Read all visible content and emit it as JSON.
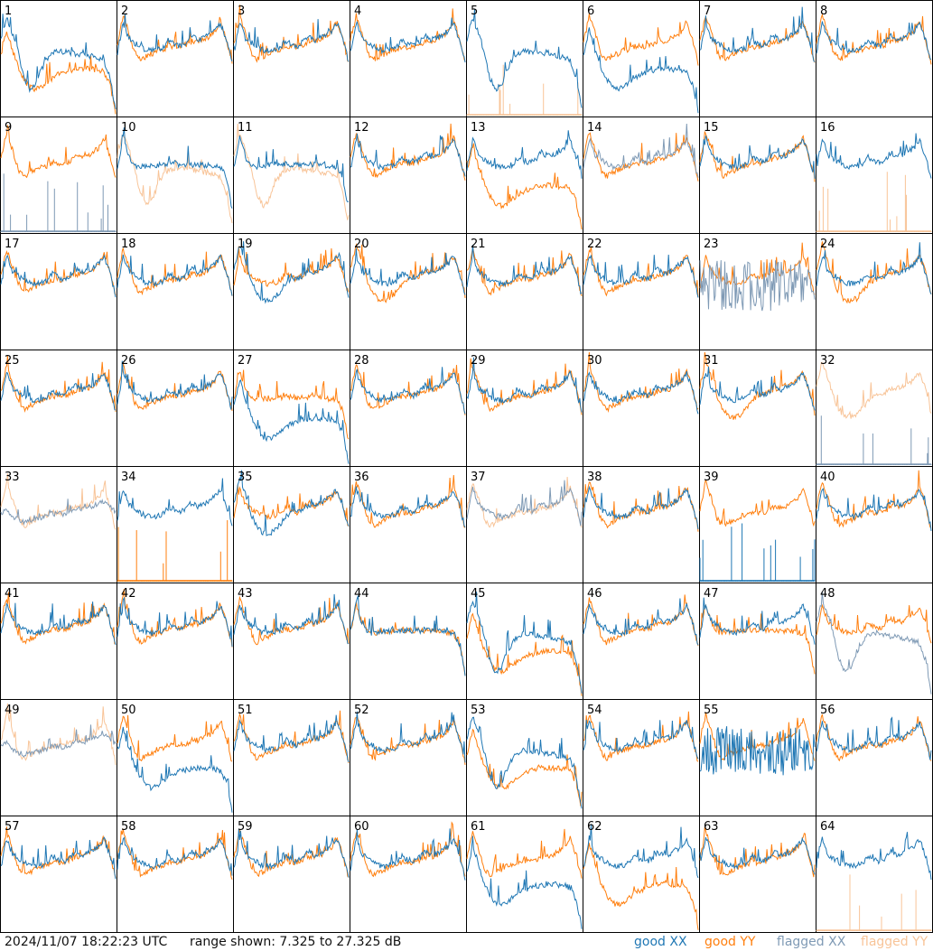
{
  "footer": {
    "timestamp": "2024/11/07 18:22:23 UTC",
    "range_text": "range shown: 7.325 to 27.325 dB"
  },
  "colors": {
    "good_xx": "#1f77b4",
    "good_yy": "#ff7f0e",
    "flagged_xx": "#7f9ab5",
    "flagged_yy": "#f8c498",
    "panel_border": "#000000",
    "background": "#ffffff"
  },
  "chart_data": {
    "type": "line",
    "layout": "8x8 small multiples",
    "ylim": [
      7.325,
      27.325
    ],
    "y_unit": "dB",
    "legend": [
      {
        "key": "good_xx",
        "label": "good XX"
      },
      {
        "key": "good_yy",
        "label": "good YY"
      },
      {
        "key": "flagged_xx",
        "label": "flagged XX"
      },
      {
        "key": "flagged_yy",
        "label": "flagged YY"
      }
    ],
    "x": [
      0,
      0.05,
      0.1,
      0.15,
      0.2,
      0.25,
      0.3,
      0.35,
      0.4,
      0.45,
      0.5,
      0.55,
      0.6,
      0.65,
      0.7,
      0.75,
      0.8,
      0.85,
      0.9,
      0.95,
      1.0
    ],
    "shapes": {
      "A": [
        18.5,
        23.8,
        21.0,
        20.2,
        19.5,
        19.0,
        18.8,
        19.0,
        19.3,
        20.6,
        20.0,
        19.6,
        20.3,
        21.4,
        20.7,
        21.0,
        21.6,
        22.3,
        23.6,
        20.8,
        16.8
      ],
      "B": [
        20.2,
        25.0,
        22.0,
        18.5,
        17.2,
        17.8,
        18.3,
        18.9,
        19.1,
        19.6,
        19.5,
        19.6,
        19.9,
        20.5,
        20.5,
        20.8,
        21.4,
        22.2,
        24.0,
        20.8,
        16.6
      ],
      "C": [
        21.3,
        25.8,
        22.8,
        19.3,
        17.0,
        16.0,
        15.8,
        16.2,
        17.4,
        18.8,
        19.5,
        19.8,
        20.2,
        20.9,
        21.0,
        21.4,
        21.8,
        22.6,
        23.6,
        21.0,
        16.5
      ],
      "D": [
        20.8,
        24.6,
        22.0,
        18.6,
        14.0,
        12.0,
        12.8,
        15.5,
        17.3,
        18.4,
        18.7,
        18.6,
        18.5,
        18.3,
        18.2,
        18.0,
        17.8,
        17.6,
        17.0,
        14.0,
        8.5
      ],
      "E": [
        18.0,
        22.5,
        19.0,
        16.0,
        13.8,
        12.4,
        12.0,
        12.4,
        13.2,
        14.0,
        14.6,
        15.0,
        15.3,
        15.5,
        15.6,
        15.6,
        15.5,
        15.4,
        15.0,
        13.0,
        8.0
      ],
      "F": [
        19.0,
        24.0,
        20.6,
        19.2,
        18.8,
        19.0,
        19.2,
        19.2,
        19.4,
        19.4,
        19.3,
        19.3,
        19.3,
        19.3,
        19.3,
        19.2,
        19.1,
        19.0,
        18.8,
        17.0,
        11.5
      ],
      "G": [
        19.4,
        20.0,
        19.0,
        18.4,
        18.0,
        18.2,
        18.4,
        18.7,
        19.0,
        19.4,
        19.4,
        19.3,
        19.5,
        20.0,
        20.2,
        20.4,
        20.8,
        21.2,
        21.6,
        20.6,
        19.5
      ]
    },
    "series": [
      "good_xx",
      "good_yy",
      "flagged_xx",
      "flagged_yy"
    ],
    "panels": [
      {
        "label": "1",
        "xx": "D",
        "yy": "E",
        "xx_flag": "good",
        "yy_flag": "good"
      },
      {
        "label": "2",
        "xx": "A",
        "yy": "B",
        "xx_flag": "good",
        "yy_flag": "good"
      },
      {
        "label": "3",
        "xx": "A",
        "yy": "B",
        "xx_flag": "good",
        "yy_flag": "good"
      },
      {
        "label": "4",
        "xx": "A",
        "yy": "B",
        "xx_flag": "good",
        "yy_flag": "good"
      },
      {
        "label": "5",
        "xx": "D",
        "yy": "spikes",
        "xx_flag": "good",
        "yy_flag": "flagged"
      },
      {
        "label": "6",
        "xx": "E",
        "yy": "B",
        "xx_flag": "good",
        "yy_flag": "good"
      },
      {
        "label": "7",
        "xx": "A",
        "yy": "B",
        "xx_flag": "good",
        "yy_flag": "good"
      },
      {
        "label": "8",
        "xx": "A",
        "yy": "B",
        "xx_flag": "good",
        "yy_flag": "good"
      },
      {
        "label": "9",
        "xx": "spikes",
        "yy": "B",
        "xx_flag": "flagged",
        "yy_flag": "good"
      },
      {
        "label": "10",
        "xx": "F",
        "yy": "D",
        "xx_flag": "good",
        "yy_flag": "flagged"
      },
      {
        "label": "11",
        "xx": "F",
        "yy": "D",
        "xx_flag": "good",
        "yy_flag": "flagged"
      },
      {
        "label": "12",
        "xx": "A",
        "yy": "B",
        "xx_flag": "good",
        "yy_flag": "good"
      },
      {
        "label": "13",
        "xx": "A",
        "yy": "E",
        "xx_flag": "good",
        "yy_flag": "good"
      },
      {
        "label": "14",
        "xx": "A",
        "yy": "B",
        "xx_flag": "flagged",
        "yy_flag": "good"
      },
      {
        "label": "15",
        "xx": "A",
        "yy": "B",
        "xx_flag": "good",
        "yy_flag": "good"
      },
      {
        "label": "16",
        "xx": "A",
        "yy": "spikes",
        "xx_flag": "good",
        "yy_flag": "flagged"
      },
      {
        "label": "17",
        "xx": "A",
        "yy": "B",
        "xx_flag": "good",
        "yy_flag": "good"
      },
      {
        "label": "18",
        "xx": "A",
        "yy": "B",
        "xx_flag": "good",
        "yy_flag": "good"
      },
      {
        "label": "19",
        "xx": "C",
        "yy": "A",
        "xx_flag": "good",
        "yy_flag": "good"
      },
      {
        "label": "20",
        "xx": "A",
        "yy": "C",
        "xx_flag": "good",
        "yy_flag": "good"
      },
      {
        "label": "21",
        "xx": "A",
        "yy": "B",
        "xx_flag": "good",
        "yy_flag": "good"
      },
      {
        "label": "22",
        "xx": "A",
        "yy": "B",
        "xx_flag": "good",
        "yy_flag": "good"
      },
      {
        "label": "23",
        "xx": "noisy",
        "yy": "A",
        "xx_flag": "flagged",
        "yy_flag": "good"
      },
      {
        "label": "24",
        "xx": "A",
        "yy": "C",
        "xx_flag": "good",
        "yy_flag": "good"
      },
      {
        "label": "25",
        "xx": "A",
        "yy": "B",
        "xx_flag": "good",
        "yy_flag": "good"
      },
      {
        "label": "26",
        "xx": "A",
        "yy": "B",
        "xx_flag": "good",
        "yy_flag": "good"
      },
      {
        "label": "27",
        "xx": "E",
        "yy": "F",
        "xx_flag": "good",
        "yy_flag": "good"
      },
      {
        "label": "28",
        "xx": "A",
        "yy": "B",
        "xx_flag": "good",
        "yy_flag": "good"
      },
      {
        "label": "29",
        "xx": "A",
        "yy": "B",
        "xx_flag": "good",
        "yy_flag": "good"
      },
      {
        "label": "30",
        "xx": "A",
        "yy": "B",
        "xx_flag": "good",
        "yy_flag": "good"
      },
      {
        "label": "31",
        "xx": "A",
        "yy": "C",
        "xx_flag": "good",
        "yy_flag": "good"
      },
      {
        "label": "32",
        "xx": "spikes",
        "yy": "C",
        "xx_flag": "flagged",
        "yy_flag": "flagged"
      },
      {
        "label": "33",
        "xx": "G",
        "yy": "B",
        "xx_flag": "flagged",
        "yy_flag": "flagged"
      },
      {
        "label": "34",
        "xx": "A",
        "yy": "spikes",
        "xx_flag": "good",
        "yy_flag": "good"
      },
      {
        "label": "35",
        "xx": "C",
        "yy": "A",
        "xx_flag": "good",
        "yy_flag": "good"
      },
      {
        "label": "36",
        "xx": "A",
        "yy": "B",
        "xx_flag": "good",
        "yy_flag": "good"
      },
      {
        "label": "37",
        "xx": "A",
        "yy": "B",
        "xx_flag": "flagged",
        "yy_flag": "flagged"
      },
      {
        "label": "38",
        "xx": "A",
        "yy": "B",
        "xx_flag": "good",
        "yy_flag": "good"
      },
      {
        "label": "39",
        "xx": "spikes",
        "yy": "B",
        "xx_flag": "good",
        "yy_flag": "good"
      },
      {
        "label": "40",
        "xx": "A",
        "yy": "B",
        "xx_flag": "good",
        "yy_flag": "good"
      },
      {
        "label": "41",
        "xx": "A",
        "yy": "B",
        "xx_flag": "good",
        "yy_flag": "good"
      },
      {
        "label": "42",
        "xx": "A",
        "yy": "B",
        "xx_flag": "good",
        "yy_flag": "good"
      },
      {
        "label": "43",
        "xx": "A",
        "yy": "B",
        "xx_flag": "good",
        "yy_flag": "good"
      },
      {
        "label": "44",
        "xx": "F",
        "yy": "F",
        "xx_flag": "good",
        "yy_flag": "good"
      },
      {
        "label": "45",
        "xx": "D",
        "yy": "E",
        "xx_flag": "good",
        "yy_flag": "good"
      },
      {
        "label": "46",
        "xx": "A",
        "yy": "B",
        "xx_flag": "good",
        "yy_flag": "good"
      },
      {
        "label": "47",
        "xx": "A",
        "yy": "F",
        "xx_flag": "good",
        "yy_flag": "good"
      },
      {
        "label": "48",
        "xx": "D",
        "yy": "A",
        "xx_flag": "flagged",
        "yy_flag": "good"
      },
      {
        "label": "49",
        "xx": "G",
        "yy": "B",
        "xx_flag": "flagged",
        "yy_flag": "flagged"
      },
      {
        "label": "50",
        "xx": "E",
        "yy": "B",
        "xx_flag": "good",
        "yy_flag": "good"
      },
      {
        "label": "51",
        "xx": "A",
        "yy": "B",
        "xx_flag": "good",
        "yy_flag": "good"
      },
      {
        "label": "52",
        "xx": "A",
        "yy": "B",
        "xx_flag": "good",
        "yy_flag": "good"
      },
      {
        "label": "53",
        "xx": "D",
        "yy": "E",
        "xx_flag": "good",
        "yy_flag": "good"
      },
      {
        "label": "54",
        "xx": "A",
        "yy": "B",
        "xx_flag": "good",
        "yy_flag": "good"
      },
      {
        "label": "55",
        "xx": "noisy",
        "yy": "B",
        "xx_flag": "good",
        "yy_flag": "good"
      },
      {
        "label": "56",
        "xx": "A",
        "yy": "B",
        "xx_flag": "good",
        "yy_flag": "good"
      },
      {
        "label": "57",
        "xx": "A",
        "yy": "B",
        "xx_flag": "good",
        "yy_flag": "good"
      },
      {
        "label": "58",
        "xx": "A",
        "yy": "B",
        "xx_flag": "good",
        "yy_flag": "good"
      },
      {
        "label": "59",
        "xx": "A",
        "yy": "B",
        "xx_flag": "good",
        "yy_flag": "good"
      },
      {
        "label": "60",
        "xx": "A",
        "yy": "B",
        "xx_flag": "good",
        "yy_flag": "good"
      },
      {
        "label": "61",
        "xx": "E",
        "yy": "B",
        "xx_flag": "good",
        "yy_flag": "good"
      },
      {
        "label": "62",
        "xx": "A",
        "yy": "E",
        "xx_flag": "good",
        "yy_flag": "good"
      },
      {
        "label": "63",
        "xx": "A",
        "yy": "B",
        "xx_flag": "good",
        "yy_flag": "good"
      },
      {
        "label": "64",
        "xx": "A",
        "yy": "spikes",
        "xx_flag": "good",
        "yy_flag": "flagged"
      }
    ]
  }
}
